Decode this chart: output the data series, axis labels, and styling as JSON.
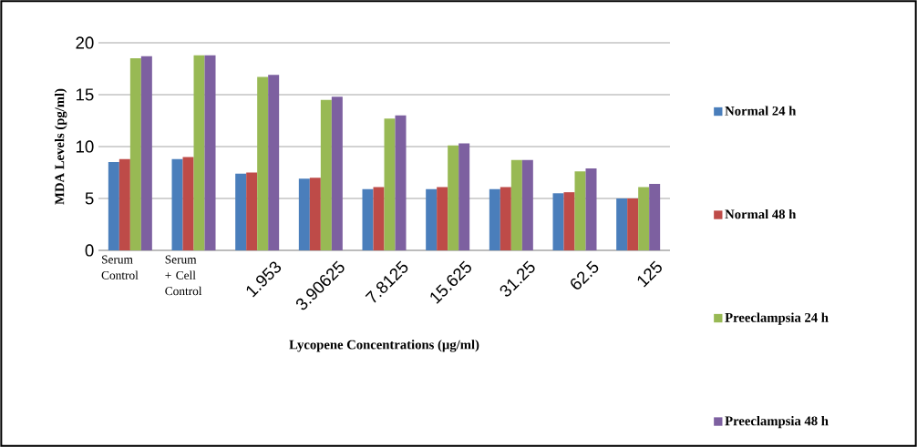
{
  "chart_data": {
    "type": "bar",
    "xlabel": "Lycopene Concentrations (µg/ml)",
    "ylabel": "MDA Levels (pg/ml)",
    "categories": [
      "Serum Control",
      "Serum + Cell Control",
      "1.953",
      "3.90625",
      "7.8125",
      "15.625",
      "31.25",
      "62.5",
      "125"
    ],
    "series": [
      {
        "name": "Normal 24 h",
        "color": "#4a7ebb",
        "values": [
          8.5,
          8.8,
          7.4,
          6.9,
          5.9,
          5.9,
          5.9,
          5.5,
          5.0
        ]
      },
      {
        "name": "Normal 48 h",
        "color": "#be4b48",
        "values": [
          8.8,
          9.0,
          7.5,
          7.0,
          6.1,
          6.1,
          6.1,
          5.6,
          5.0
        ]
      },
      {
        "name": "Preeclampsia 24 h",
        "color": "#98b954",
        "values": [
          18.5,
          18.8,
          16.7,
          14.5,
          12.7,
          10.1,
          8.7,
          7.6,
          6.1
        ]
      },
      {
        "name": "Preeclampsia 48 h",
        "color": "#7d60a0",
        "values": [
          18.7,
          18.8,
          16.9,
          14.8,
          13.0,
          10.3,
          8.7,
          7.9,
          6.4
        ]
      }
    ],
    "ylim": [
      0,
      20
    ],
    "yticks": [
      0,
      5,
      10,
      15,
      20
    ],
    "grid": "y",
    "legend": "right"
  }
}
